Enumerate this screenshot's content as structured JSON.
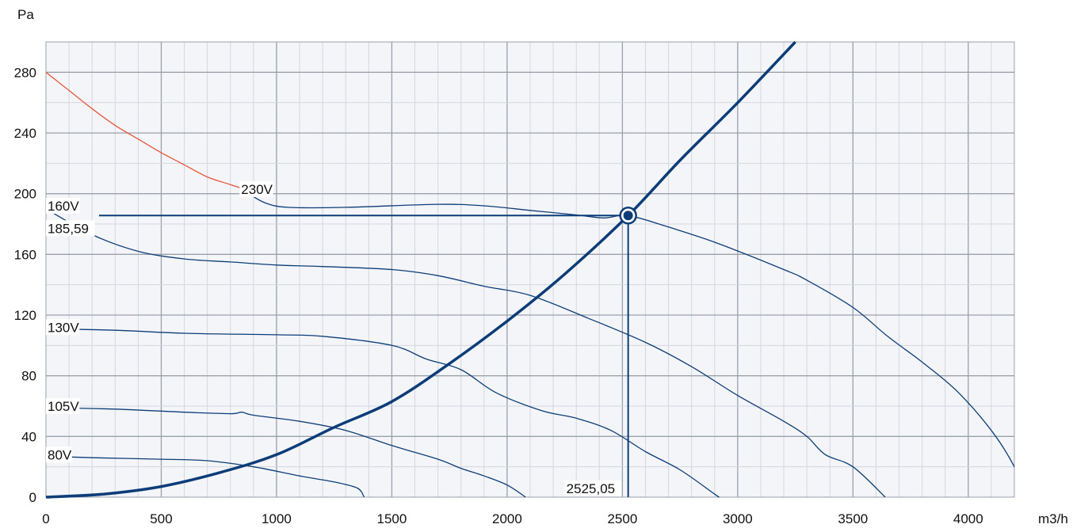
{
  "chart_data": {
    "type": "line",
    "xunit": "m3/h",
    "yunit": "Pa",
    "xlim": [
      0,
      4200
    ],
    "ylim": [
      0,
      300
    ],
    "x_ticks": [
      0,
      500,
      1000,
      1500,
      2000,
      2500,
      3000,
      3500,
      4000
    ],
    "y_ticks": [
      0,
      40,
      80,
      120,
      160,
      200,
      240,
      280
    ],
    "grid": true,
    "series": [
      {
        "name": "230V",
        "color": "#e8553b",
        "points": [
          [
            0,
            280
          ],
          [
            100,
            268
          ],
          [
            200,
            256
          ],
          [
            300,
            245
          ],
          [
            400,
            236
          ],
          [
            500,
            227
          ],
          [
            600,
            219
          ],
          [
            700,
            211
          ],
          [
            800,
            206
          ],
          [
            880,
            202
          ]
        ]
      },
      {
        "name": "230V",
        "color": "#0d3d78",
        "points": [
          [
            880,
            200
          ],
          [
            950,
            194
          ],
          [
            1050,
            191
          ],
          [
            1300,
            191
          ],
          [
            1700,
            193
          ],
          [
            1900,
            192
          ],
          [
            2100,
            189
          ],
          [
            2300,
            186
          ],
          [
            2420,
            184
          ],
          [
            2525.05,
            185.59
          ],
          [
            2700,
            178
          ],
          [
            2900,
            168
          ],
          [
            3200,
            150
          ],
          [
            3300,
            143
          ],
          [
            3500,
            125
          ],
          [
            3650,
            106
          ],
          [
            3800,
            89
          ],
          [
            3950,
            70
          ],
          [
            4100,
            44
          ],
          [
            4200,
            20
          ],
          [
            4250,
            0
          ]
        ]
      },
      {
        "name": "160V",
        "color": "#0d3d78",
        "points": [
          [
            0,
            190
          ],
          [
            200,
            173
          ],
          [
            400,
            162
          ],
          [
            600,
            157
          ],
          [
            800,
            155
          ],
          [
            1000,
            153
          ],
          [
            1200,
            152
          ],
          [
            1500,
            150
          ],
          [
            1700,
            146
          ],
          [
            1900,
            139
          ],
          [
            2100,
            133
          ],
          [
            2350,
            118
          ],
          [
            2600,
            102
          ],
          [
            2800,
            86
          ],
          [
            3000,
            67
          ],
          [
            3200,
            50
          ],
          [
            3300,
            40
          ],
          [
            3380,
            28
          ],
          [
            3500,
            20
          ],
          [
            3640,
            0
          ]
        ]
      },
      {
        "name": "130V",
        "color": "#0d3d78",
        "points": [
          [
            0,
            111
          ],
          [
            300,
            110
          ],
          [
            600,
            108
          ],
          [
            1000,
            107
          ],
          [
            1200,
            106
          ],
          [
            1500,
            100
          ],
          [
            1650,
            91
          ],
          [
            1800,
            84
          ],
          [
            1950,
            69
          ],
          [
            2150,
            57
          ],
          [
            2300,
            52
          ],
          [
            2450,
            44
          ],
          [
            2600,
            30
          ],
          [
            2750,
            18
          ],
          [
            2900,
            2
          ],
          [
            2920,
            0
          ]
        ]
      },
      {
        "name": "105V",
        "color": "#0d3d78",
        "points": [
          [
            0,
            59
          ],
          [
            300,
            58
          ],
          [
            600,
            56
          ],
          [
            800,
            55
          ],
          [
            850,
            56
          ],
          [
            900,
            54
          ],
          [
            1100,
            50
          ],
          [
            1300,
            44
          ],
          [
            1500,
            34
          ],
          [
            1700,
            25
          ],
          [
            1800,
            19
          ],
          [
            1900,
            14
          ],
          [
            2000,
            8
          ],
          [
            2080,
            0
          ]
        ]
      },
      {
        "name": "80V",
        "color": "#0d3d78",
        "points": [
          [
            0,
            27
          ],
          [
            200,
            26
          ],
          [
            500,
            25
          ],
          [
            700,
            24
          ],
          [
            900,
            20
          ],
          [
            1100,
            14
          ],
          [
            1250,
            10
          ],
          [
            1350,
            6
          ],
          [
            1380,
            0
          ]
        ]
      }
    ],
    "system_curve": {
      "points": [
        [
          0,
          0
        ],
        [
          250,
          2
        ],
        [
          500,
          7
        ],
        [
          750,
          16
        ],
        [
          1000,
          28
        ],
        [
          1250,
          46
        ],
        [
          1500,
          63
        ],
        [
          1750,
          88
        ],
        [
          2000,
          116
        ],
        [
          2250,
          147
        ],
        [
          2525.05,
          185.59
        ],
        [
          2750,
          222
        ],
        [
          3000,
          260
        ],
        [
          3250,
          300
        ]
      ]
    },
    "operating_point": {
      "x": 2525.05,
      "y": 185.59,
      "x_label": "2525,05",
      "y_label": "185,59"
    },
    "annotations": [
      {
        "text": "230V",
        "x": 850,
        "y": 203
      },
      {
        "text": "160V",
        "x": 10,
        "y": 192
      },
      {
        "text": "130V",
        "x": 10,
        "y": 112
      },
      {
        "text": "105V",
        "x": 10,
        "y": 60
      },
      {
        "text": "80V",
        "x": 10,
        "y": 28
      }
    ],
    "colors": {
      "plot_bg": "#f3f5f8",
      "grid_minor": "#d3d8df",
      "grid_major": "#9aa1ab",
      "curve": "#0d3d78",
      "curve_230_start": "#e8553b"
    }
  }
}
